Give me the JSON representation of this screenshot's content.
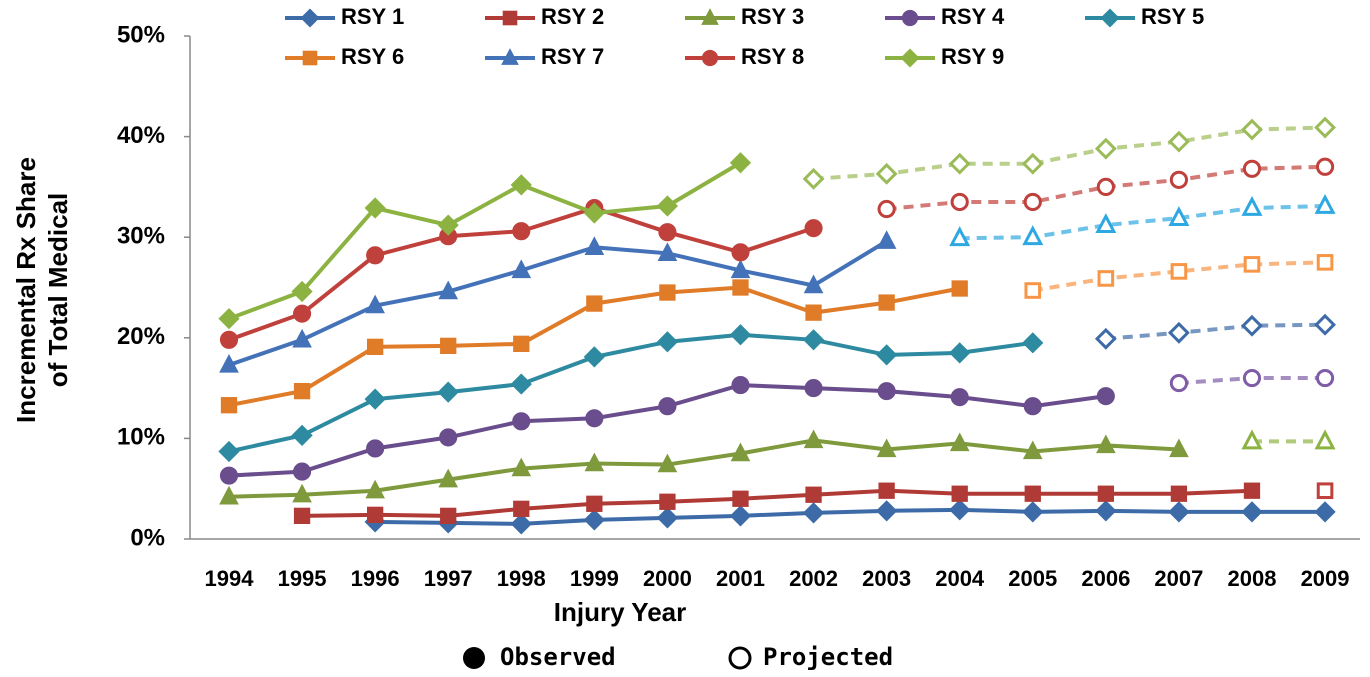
{
  "chart_data": {
    "type": "line",
    "xlabel": "Injury Year",
    "ylabel": [
      "Incremental Rx Share",
      "of Total Medical"
    ],
    "categories": [
      "1994",
      "1995",
      "1996",
      "1997",
      "1998",
      "1999",
      "2000",
      "2001",
      "2002",
      "2003",
      "2004",
      "2005",
      "2006",
      "2007",
      "2008",
      "2009"
    ],
    "ylim": [
      0,
      50
    ],
    "yticks": [
      {
        "value": 0,
        "label": "0%"
      },
      {
        "value": 10,
        "label": "10%"
      },
      {
        "value": 20,
        "label": "20%"
      },
      {
        "value": 30,
        "label": "30%"
      },
      {
        "value": 40,
        "label": "40%"
      },
      {
        "value": 50,
        "label": "50%"
      }
    ],
    "status_legend": {
      "observed": "Observed",
      "projected": "Projected"
    },
    "series": [
      {
        "name": "RSY 1",
        "marker": "diamond",
        "color": "#3d6ba8",
        "projected_color": "#3d6ba8",
        "values": [
          null,
          null,
          1.7,
          1.6,
          1.5,
          1.9,
          2.1,
          2.3,
          2.6,
          2.8,
          2.9,
          2.7,
          2.8,
          2.7,
          2.7,
          2.7
        ],
        "projected": [
          null,
          null,
          null,
          null,
          null,
          null,
          null,
          null,
          null,
          null,
          null,
          null,
          null,
          null,
          null,
          null
        ]
      },
      {
        "name": "RSY 2",
        "marker": "square",
        "color": "#b03a36",
        "projected_color": "#c0403c",
        "values": [
          null,
          2.3,
          2.4,
          2.3,
          3.0,
          3.5,
          3.7,
          4.0,
          4.4,
          4.8,
          4.5,
          4.5,
          4.5,
          4.5,
          4.8,
          null
        ],
        "projected": [
          null,
          null,
          null,
          null,
          null,
          null,
          null,
          null,
          null,
          null,
          null,
          null,
          null,
          null,
          null,
          4.8
        ]
      },
      {
        "name": "RSY 3",
        "marker": "triangle",
        "color": "#7f9a3c",
        "projected_color": "#8cb342",
        "values": [
          4.2,
          4.4,
          4.8,
          5.9,
          7.0,
          7.5,
          7.4,
          8.5,
          9.8,
          8.9,
          9.5,
          8.7,
          9.3,
          8.9,
          null,
          null
        ],
        "projected": [
          null,
          null,
          null,
          null,
          null,
          null,
          null,
          null,
          null,
          null,
          null,
          null,
          null,
          null,
          9.7,
          9.7
        ]
      },
      {
        "name": "RSY 4",
        "marker": "circle",
        "color": "#6a4d8c",
        "projected_color": "#7e5ca6",
        "values": [
          6.3,
          6.7,
          9.0,
          10.1,
          11.7,
          12.0,
          13.2,
          15.3,
          15.0,
          14.7,
          14.1,
          13.2,
          14.2,
          null,
          null,
          null
        ],
        "projected": [
          null,
          null,
          null,
          null,
          null,
          null,
          null,
          null,
          null,
          null,
          null,
          null,
          null,
          15.5,
          16.0,
          16.0
        ]
      },
      {
        "name": "RSY 5",
        "marker": "diamond",
        "color": "#2d8aa0",
        "projected_color": "#3d6ba8",
        "values": [
          8.7,
          10.3,
          13.9,
          14.6,
          15.4,
          18.1,
          19.6,
          20.3,
          19.8,
          18.3,
          18.5,
          19.5,
          null,
          null,
          null,
          null
        ],
        "projected": [
          null,
          null,
          null,
          null,
          null,
          null,
          null,
          null,
          null,
          null,
          null,
          null,
          19.9,
          20.5,
          21.2,
          21.3
        ]
      },
      {
        "name": "RSY 6",
        "marker": "square",
        "color": "#e07b28",
        "projected_color": "#f79646",
        "values": [
          13.3,
          14.7,
          19.1,
          19.2,
          19.4,
          23.4,
          24.5,
          25.0,
          22.5,
          23.5,
          24.9,
          null,
          null,
          null,
          null,
          null
        ],
        "projected": [
          null,
          null,
          null,
          null,
          null,
          null,
          null,
          null,
          null,
          null,
          null,
          24.7,
          25.9,
          26.6,
          27.3,
          27.5
        ]
      },
      {
        "name": "RSY 7",
        "marker": "triangle",
        "color": "#4472b8",
        "projected_color": "#2ea8e0",
        "values": [
          17.3,
          19.8,
          23.2,
          24.6,
          26.7,
          29.0,
          28.4,
          26.7,
          25.2,
          29.6,
          null,
          null,
          null,
          null,
          null,
          null
        ],
        "projected": [
          null,
          null,
          null,
          null,
          null,
          null,
          null,
          null,
          null,
          null,
          29.9,
          30.0,
          31.2,
          31.9,
          32.9,
          33.1
        ]
      },
      {
        "name": "RSY 8",
        "marker": "circle",
        "color": "#c0403c",
        "projected_color": "#c0403c",
        "values": [
          19.8,
          22.4,
          28.2,
          30.1,
          30.6,
          32.9,
          30.5,
          28.5,
          30.9,
          null,
          null,
          null,
          null,
          null,
          null,
          null
        ],
        "projected": [
          null,
          null,
          null,
          null,
          null,
          null,
          null,
          null,
          null,
          32.8,
          33.5,
          33.5,
          35.0,
          35.7,
          36.8,
          37.0
        ]
      },
      {
        "name": "RSY 9",
        "marker": "diamond",
        "color": "#8cb342",
        "projected_color": "#9bbb59",
        "values": [
          21.9,
          24.6,
          32.9,
          31.2,
          35.2,
          32.4,
          33.1,
          37.4,
          null,
          null,
          null,
          null,
          null,
          null,
          null,
          null
        ],
        "projected": [
          null,
          null,
          null,
          null,
          null,
          null,
          null,
          null,
          35.8,
          36.3,
          37.3,
          37.3,
          38.8,
          39.5,
          40.7,
          40.9
        ]
      }
    ]
  }
}
